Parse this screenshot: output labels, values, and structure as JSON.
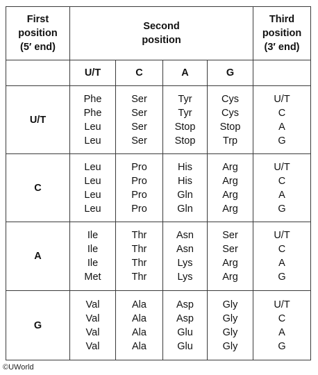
{
  "header": {
    "first_position": [
      "First",
      "position",
      "(5′ end)"
    ],
    "second_position": [
      "Second",
      "position"
    ],
    "third_position": [
      "Third",
      "position",
      "(3′ end)"
    ]
  },
  "second_bases": [
    "U/T",
    "C",
    "A",
    "G"
  ],
  "rows": [
    {
      "first": "U/T",
      "cells": [
        [
          "Phe",
          "Phe",
          "Leu",
          "Leu"
        ],
        [
          "Ser",
          "Ser",
          "Ser",
          "Ser"
        ],
        [
          "Tyr",
          "Tyr",
          "Stop",
          "Stop"
        ],
        [
          "Cys",
          "Cys",
          "Stop",
          "Trp"
        ]
      ],
      "third": [
        "U/T",
        "C",
        "A",
        "G"
      ]
    },
    {
      "first": "C",
      "cells": [
        [
          "Leu",
          "Leu",
          "Leu",
          "Leu"
        ],
        [
          "Pro",
          "Pro",
          "Pro",
          "Pro"
        ],
        [
          "His",
          "His",
          "Gln",
          "Gln"
        ],
        [
          "Arg",
          "Arg",
          "Arg",
          "Arg"
        ]
      ],
      "third": [
        "U/T",
        "C",
        "A",
        "G"
      ]
    },
    {
      "first": "A",
      "cells": [
        [
          "Ile",
          "Ile",
          "Ile",
          "Met"
        ],
        [
          "Thr",
          "Thr",
          "Thr",
          "Thr"
        ],
        [
          "Asn",
          "Asn",
          "Lys",
          "Lys"
        ],
        [
          "Ser",
          "Ser",
          "Arg",
          "Arg"
        ]
      ],
      "third": [
        "U/T",
        "C",
        "A",
        "G"
      ]
    },
    {
      "first": "G",
      "cells": [
        [
          "Val",
          "Val",
          "Val",
          "Val"
        ],
        [
          "Ala",
          "Ala",
          "Ala",
          "Ala"
        ],
        [
          "Asp",
          "Asp",
          "Glu",
          "Glu"
        ],
        [
          "Gly",
          "Gly",
          "Gly",
          "Gly"
        ]
      ],
      "third": [
        "U/T",
        "C",
        "A",
        "G"
      ]
    }
  ],
  "copyright": "©UWorld"
}
